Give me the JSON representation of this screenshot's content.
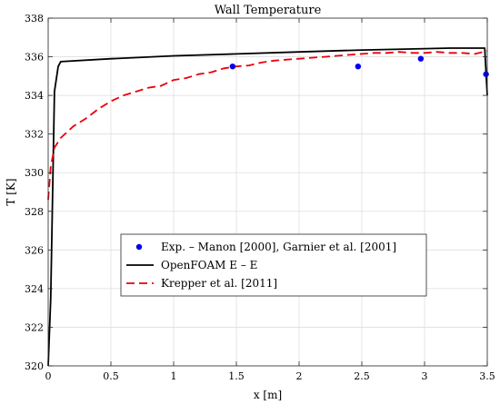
{
  "chart_data": {
    "type": "line",
    "title": "Wall Temperature",
    "xlabel": "x [m]",
    "ylabel": "T [K]",
    "xlim": [
      0,
      3.5
    ],
    "ylim": [
      320,
      338
    ],
    "xticks": [
      "0",
      "0.5",
      "1",
      "1.5",
      "2",
      "2.5",
      "3",
      "3.5"
    ],
    "yticks": [
      "320",
      "322",
      "324",
      "326",
      "328",
      "330",
      "332",
      "334",
      "336",
      "338"
    ],
    "grid": true,
    "legend_position": "bottom-center",
    "series": [
      {
        "name": "Exp. – Manon [2000],  Garnier et al. [2001]",
        "kind": "scatter",
        "color": "#0000ee",
        "x": [
          1.47,
          2.47,
          2.97,
          3.49
        ],
        "y": [
          335.5,
          335.5,
          335.9,
          335.1
        ]
      },
      {
        "name": "OpenFOAM E – E",
        "kind": "line",
        "style": "solid",
        "color": "#000000",
        "x": [
          0.0,
          0.02,
          0.05,
          0.08,
          0.1,
          0.5,
          1.0,
          1.5,
          2.0,
          2.5,
          3.0,
          3.2,
          3.48,
          3.5
        ],
        "y": [
          320.0,
          323.5,
          334.2,
          335.5,
          335.75,
          335.9,
          336.05,
          336.15,
          336.25,
          336.35,
          336.42,
          336.45,
          336.45,
          334.0
        ]
      },
      {
        "name": "Krepper et al. [2011]",
        "kind": "line",
        "style": "dashed",
        "color": "#e8000b",
        "x": [
          0.0,
          0.02,
          0.05,
          0.1,
          0.2,
          0.3,
          0.4,
          0.5,
          0.6,
          0.7,
          0.8,
          0.9,
          1.0,
          1.1,
          1.2,
          1.3,
          1.4,
          1.5,
          1.6,
          1.7,
          1.8,
          1.9,
          2.0,
          2.1,
          2.2,
          2.3,
          2.4,
          2.5,
          2.6,
          2.7,
          2.8,
          2.9,
          3.0,
          3.1,
          3.2,
          3.3,
          3.4,
          3.5
        ],
        "y": [
          328.6,
          330.3,
          331.3,
          331.8,
          332.4,
          332.8,
          333.3,
          333.7,
          334.0,
          334.2,
          334.4,
          334.5,
          334.8,
          334.9,
          335.1,
          335.2,
          335.4,
          335.5,
          335.55,
          335.7,
          335.8,
          335.85,
          335.9,
          335.95,
          336.0,
          336.05,
          336.1,
          336.15,
          336.2,
          336.2,
          336.25,
          336.2,
          336.2,
          336.25,
          336.2,
          336.2,
          336.15,
          336.3
        ]
      }
    ]
  }
}
